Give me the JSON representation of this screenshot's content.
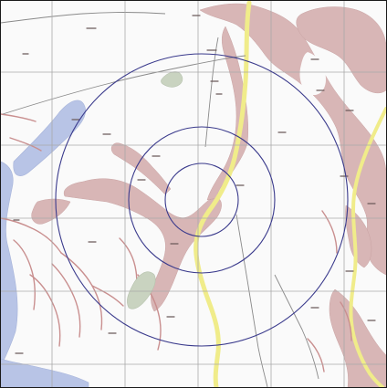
{
  "map": {
    "labels": [],
    "colors": {
      "background": "#fafafa",
      "grid": "#a9a9a9",
      "water": "#b8c4e6",
      "land_shade": "#d8b6b6",
      "road_yellow": "#f0ec8a",
      "ring": "#3a3a8c",
      "stream": "#c98f8f",
      "green_patch": "#c9d3c0"
    },
    "range_rings": [
      {
        "name": "inner-range-ring"
      },
      {
        "name": "middle-range-ring"
      },
      {
        "name": "outer-range-ring"
      }
    ]
  }
}
